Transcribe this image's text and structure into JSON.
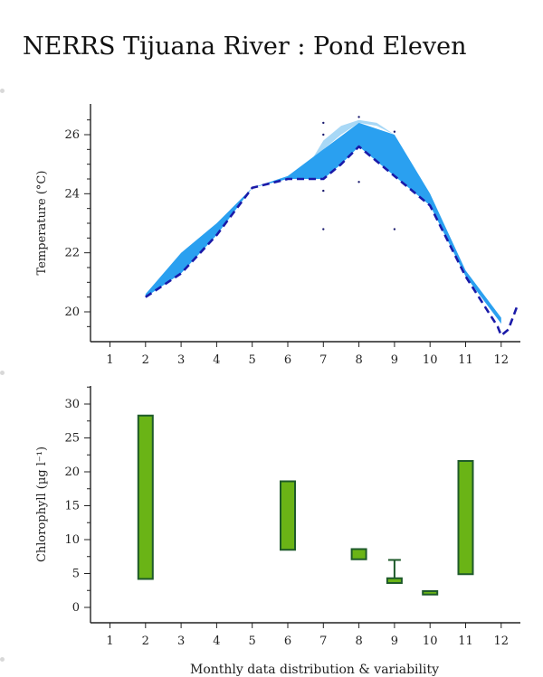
{
  "page": {
    "title": "NERRS Tijuana River : Pond Eleven",
    "caption": "Monthly data distribution & variability"
  },
  "colors": {
    "temp_band_dark": "#2aa0f0",
    "temp_band_light": "#a8d8f6",
    "temp_line": "#1a1aa8",
    "chl_fill": "#6ab416",
    "chl_stroke": "#1e5a2a",
    "axis": "#222222"
  },
  "chart_data": [
    {
      "type": "area",
      "ylabel": "Temperature (°C)",
      "xlabel": "",
      "x_ticks": [
        "1",
        "2",
        "3",
        "4",
        "5",
        "6",
        "7",
        "8",
        "9",
        "10",
        "11",
        "12"
      ],
      "y_ticks": [
        "20",
        "22",
        "24",
        "26"
      ],
      "ylim": [
        19.0,
        27.0
      ],
      "xlim": [
        0.5,
        12.5
      ],
      "series": [
        {
          "role": "dashed-line",
          "x": [
            2,
            3,
            4,
            5,
            6,
            7,
            7.5,
            8,
            9,
            10,
            11,
            11.9,
            12.0,
            12.2,
            12.45
          ],
          "y": [
            20.5,
            21.3,
            22.6,
            24.2,
            24.5,
            24.5,
            25.0,
            25.6,
            24.6,
            23.6,
            21.2,
            19.5,
            19.2,
            19.4,
            20.2
          ]
        },
        {
          "role": "upper-band",
          "x": [
            2,
            3,
            4,
            5,
            6,
            7,
            8,
            9,
            10,
            11,
            12
          ],
          "y": [
            20.6,
            22.0,
            23.0,
            24.2,
            24.6,
            25.5,
            26.4,
            26.0,
            24.0,
            21.4,
            19.8
          ]
        },
        {
          "role": "light-upper-band",
          "x": [
            6.5,
            7,
            7.5,
            8,
            8.5,
            9
          ],
          "y": [
            24.8,
            25.8,
            26.3,
            26.5,
            26.4,
            26.0
          ]
        }
      ],
      "scatter_points": [
        {
          "x": 7,
          "y": 26.4
        },
        {
          "x": 7,
          "y": 26.0
        },
        {
          "x": 7,
          "y": 24.1
        },
        {
          "x": 7,
          "y": 22.8
        },
        {
          "x": 8,
          "y": 26.6
        },
        {
          "x": 8,
          "y": 24.4
        },
        {
          "x": 9,
          "y": 26.1
        },
        {
          "x": 9,
          "y": 22.8
        }
      ]
    },
    {
      "type": "bar",
      "ylabel": "Chlorophyll (µg l⁻¹)",
      "xlabel": "",
      "x_ticks": [
        "1",
        "2",
        "3",
        "4",
        "5",
        "6",
        "7",
        "8",
        "9",
        "10",
        "11",
        "12"
      ],
      "y_ticks": [
        "0",
        "5",
        "10",
        "15",
        "20",
        "25",
        "30"
      ],
      "ylim": [
        -2.3,
        32.5
      ],
      "xlim": [
        0.5,
        12.5
      ],
      "boxes": [
        {
          "month": 2,
          "low": 4.2,
          "high": 28.3
        },
        {
          "month": 6,
          "low": 8.5,
          "high": 18.6
        },
        {
          "month": 8,
          "low": 7.1,
          "high": 8.6
        },
        {
          "month": 9,
          "low": 3.6,
          "high": 4.3,
          "whisker_high": 7.0
        },
        {
          "month": 10,
          "low": 1.9,
          "high": 2.4
        },
        {
          "month": 11,
          "low": 4.9,
          "high": 21.6
        }
      ]
    }
  ]
}
